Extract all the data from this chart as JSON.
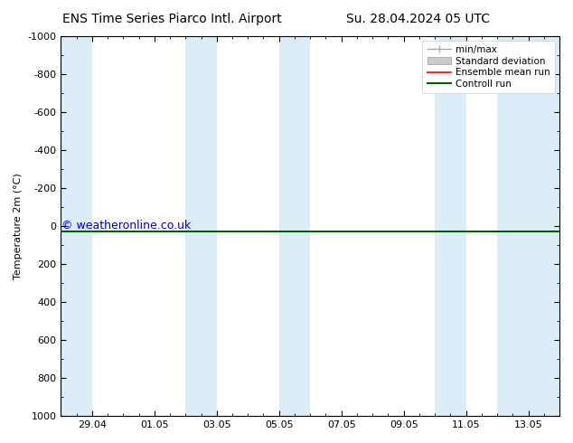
{
  "title_left": "ENS Time Series Piarco Intl. Airport",
  "title_right": "Su. 28.04.2024 05 UTC",
  "ylabel": "Temperature 2m (°C)",
  "ylim_bottom": 1000,
  "ylim_top": -1000,
  "ytick_vals": [
    -1000,
    -800,
    -600,
    -400,
    -200,
    0,
    200,
    400,
    600,
    800,
    1000
  ],
  "xtick_labels": [
    "29.04",
    "01.05",
    "03.05",
    "05.05",
    "07.05",
    "09.05",
    "11.05",
    "13.05"
  ],
  "xtick_positions": [
    1,
    3,
    5,
    7,
    9,
    11,
    13,
    15
  ],
  "xlim": [
    0,
    16
  ],
  "background_color": "#ffffff",
  "plot_bg_color": "#ffffff",
  "blue_band_color": "#ddedf7",
  "blue_band_spans": [
    [
      0,
      1
    ],
    [
      4,
      5
    ],
    [
      7,
      8
    ],
    [
      12,
      13
    ],
    [
      14,
      16
    ]
  ],
  "line_y": 28.5,
  "ensemble_mean_color": "#ff0000",
  "control_run_color": "#006400",
  "copyright_text": "© weatheronline.co.uk",
  "copyright_color": "#0000cc",
  "copyright_fontsize": 9,
  "legend_items": [
    "min/max",
    "Standard deviation",
    "Ensemble mean run",
    "Controll run"
  ],
  "minmax_color": "#aaaaaa",
  "stddev_color": "#cccccc",
  "title_fontsize": 10,
  "axis_label_fontsize": 8,
  "tick_fontsize": 8,
  "legend_fontsize": 7.5
}
